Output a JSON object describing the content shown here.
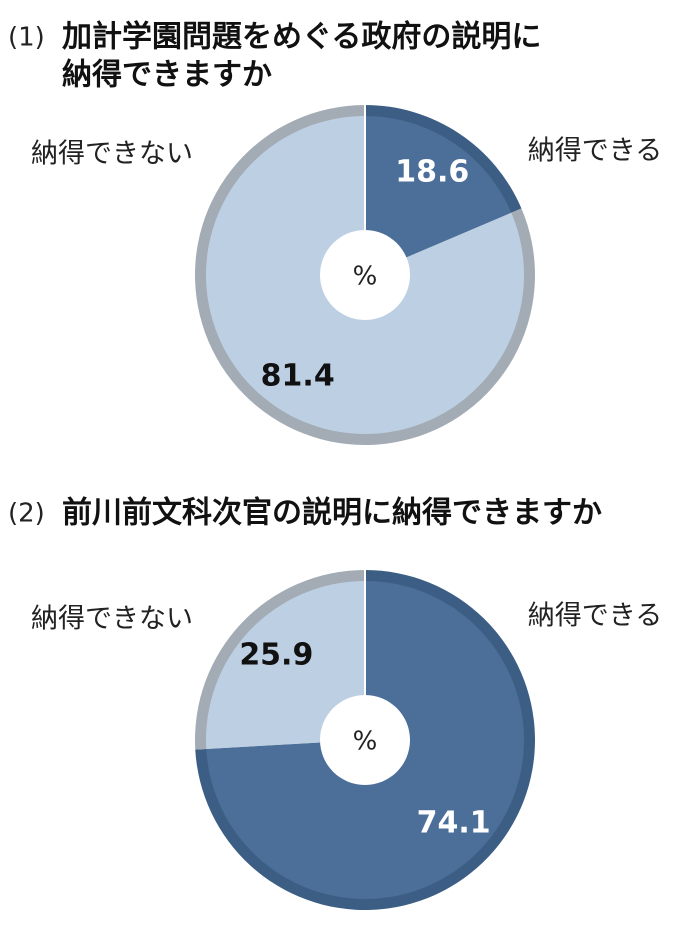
{
  "chart_data": [
    {
      "type": "pie",
      "number": "(1)",
      "title_lines": [
        "加計学園問題をめぐる政府の説明に",
        "納得できますか"
      ],
      "categories": [
        "納得できる",
        "納得できない"
      ],
      "values": [
        18.6,
        81.4
      ],
      "colors": [
        "#4b6f98",
        "#bdd0e3"
      ],
      "edge_colors": [
        "#3c5e85",
        "#a3abb4"
      ],
      "value_label_colors": [
        "#ffffff",
        "#111111"
      ],
      "center_label": "%"
    },
    {
      "type": "pie",
      "number": "(2)",
      "title_lines": [
        "前川前文科次官の説明に納得できますか"
      ],
      "categories": [
        "納得できる",
        "納得できない"
      ],
      "values": [
        74.1,
        25.9
      ],
      "colors": [
        "#4b6f98",
        "#bdd0e3"
      ],
      "edge_colors": [
        "#3c5e85",
        "#a3abb4"
      ],
      "value_label_colors": [
        "#ffffff",
        "#111111"
      ],
      "center_label": "%"
    }
  ]
}
